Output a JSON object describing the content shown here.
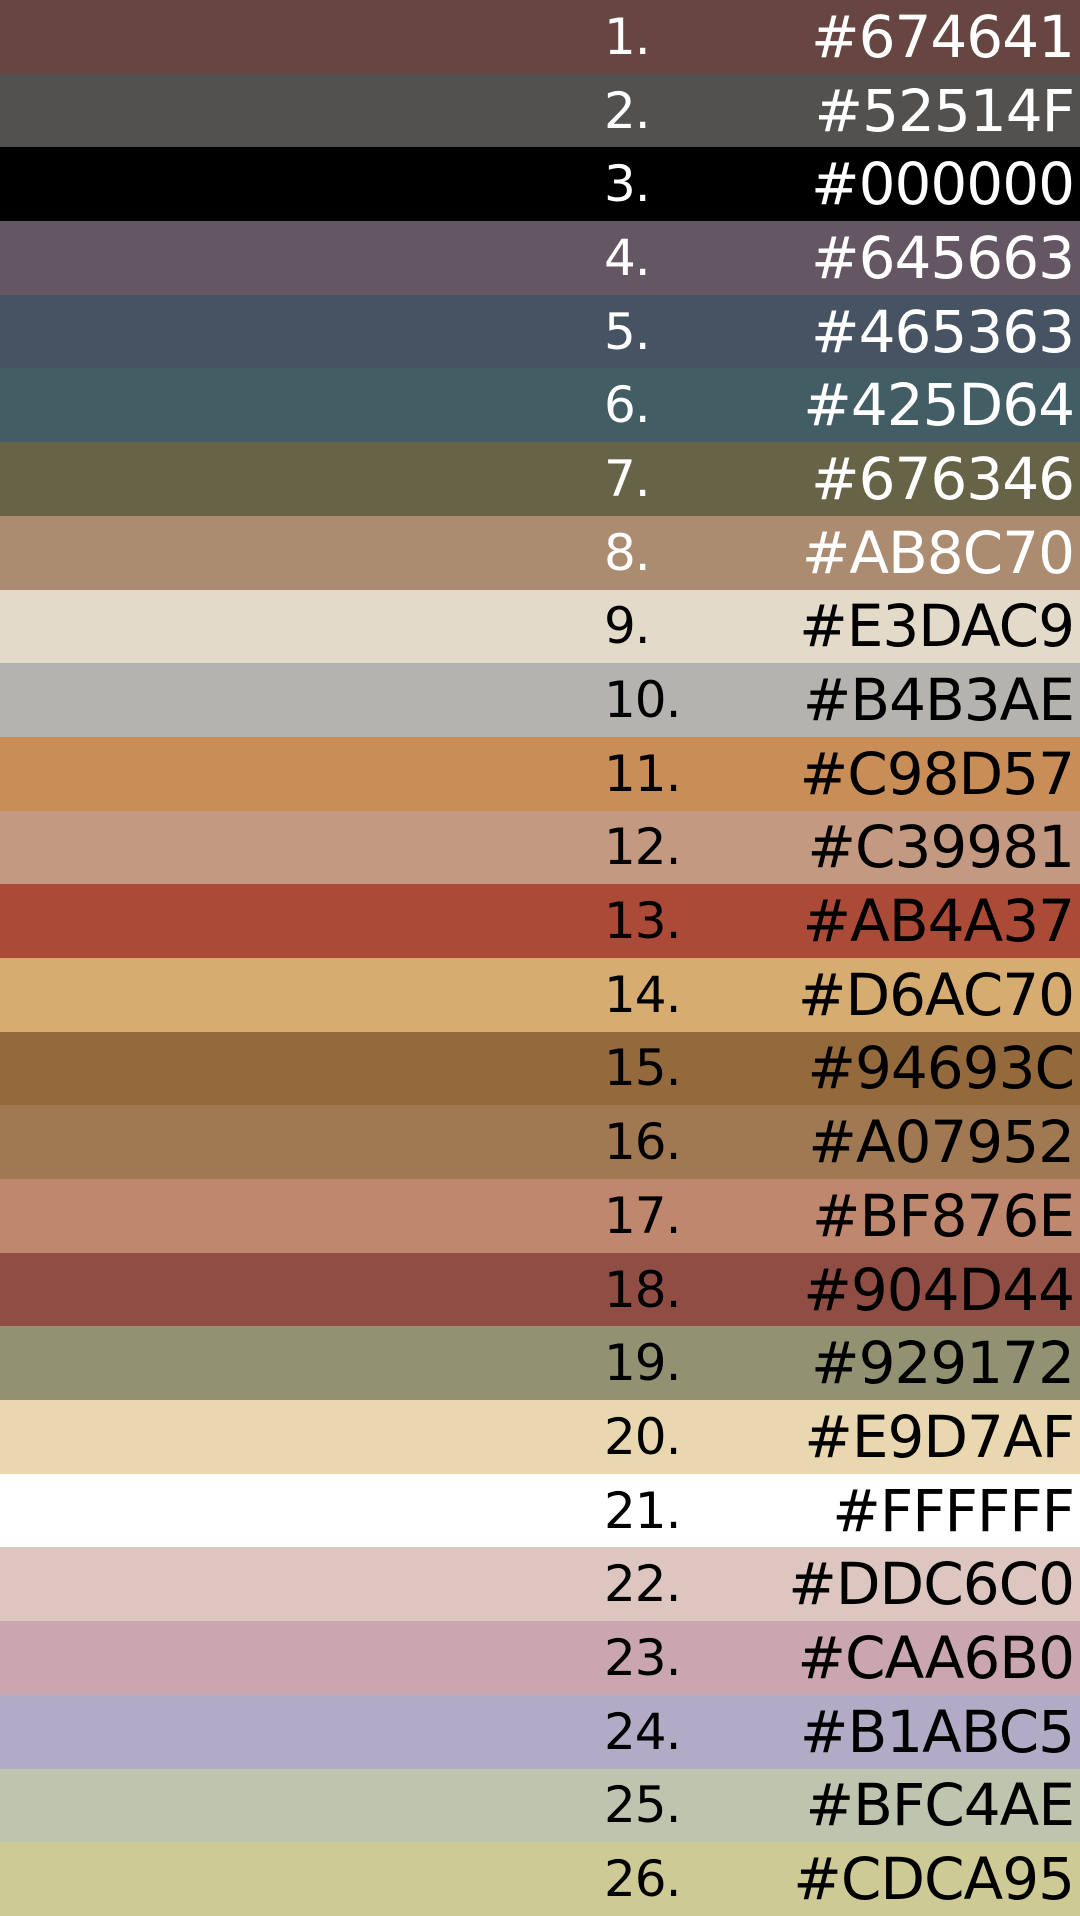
{
  "swatches": [
    {
      "number": "1.",
      "hex": "#674641",
      "color": "#674641",
      "text_color": "#ffffff"
    },
    {
      "number": "2.",
      "hex": "#52514F",
      "color": "#52514F",
      "text_color": "#ffffff"
    },
    {
      "number": "3.",
      "hex": "#000000",
      "color": "#000000",
      "text_color": "#ffffff"
    },
    {
      "number": "4.",
      "hex": "#645663",
      "color": "#645663",
      "text_color": "#ffffff"
    },
    {
      "number": "5.",
      "hex": "#465363",
      "color": "#465363",
      "text_color": "#ffffff"
    },
    {
      "number": "6.",
      "hex": "#425D64",
      "color": "#425D64",
      "text_color": "#ffffff"
    },
    {
      "number": "7.",
      "hex": "#676346",
      "color": "#676346",
      "text_color": "#ffffff"
    },
    {
      "number": "8.",
      "hex": "#AB8C70",
      "color": "#AB8C70",
      "text_color": "#ffffff"
    },
    {
      "number": "9.",
      "hex": "#E3DAC9",
      "color": "#E3DAC9",
      "text_color": "#000000"
    },
    {
      "number": "10.",
      "hex": "#B4B3AE",
      "color": "#B4B3AE",
      "text_color": "#000000"
    },
    {
      "number": "11.",
      "hex": "#C98D57",
      "color": "#C98D57",
      "text_color": "#000000"
    },
    {
      "number": "12.",
      "hex": "#C39981",
      "color": "#C39981",
      "text_color": "#000000"
    },
    {
      "number": "13.",
      "hex": "#AB4A37",
      "color": "#AB4A37",
      "text_color": "#000000"
    },
    {
      "number": "14.",
      "hex": "#D6AC70",
      "color": "#D6AC70",
      "text_color": "#000000"
    },
    {
      "number": "15.",
      "hex": "#94693C",
      "color": "#94693C",
      "text_color": "#000000"
    },
    {
      "number": "16.",
      "hex": "#A07952",
      "color": "#A07952",
      "text_color": "#000000"
    },
    {
      "number": "17.",
      "hex": "#BF876E",
      "color": "#BF876E",
      "text_color": "#000000"
    },
    {
      "number": "18.",
      "hex": "#904D44",
      "color": "#904D44",
      "text_color": "#000000"
    },
    {
      "number": "19.",
      "hex": "#929172",
      "color": "#929172",
      "text_color": "#000000"
    },
    {
      "number": "20.",
      "hex": "#E9D7AF",
      "color": "#E9D7AF",
      "text_color": "#000000"
    },
    {
      "number": "21.",
      "hex": "#FFFFFF",
      "color": "#FFFFFF",
      "text_color": "#000000"
    },
    {
      "number": "22.",
      "hex": "#DDC6C0",
      "color": "#DDC6C0",
      "text_color": "#000000"
    },
    {
      "number": "23.",
      "hex": "#CAA6B0",
      "color": "#CAA6B0",
      "text_color": "#000000"
    },
    {
      "number": "24.",
      "hex": "#B1ABC5",
      "color": "#B1ABC5",
      "text_color": "#000000"
    },
    {
      "number": "25.",
      "hex": "#BFC4AE",
      "color": "#BFC4AE",
      "text_color": "#000000"
    },
    {
      "number": "26.",
      "hex": "#CDCA95",
      "color": "#CDCA95",
      "text_color": "#000000"
    }
  ]
}
